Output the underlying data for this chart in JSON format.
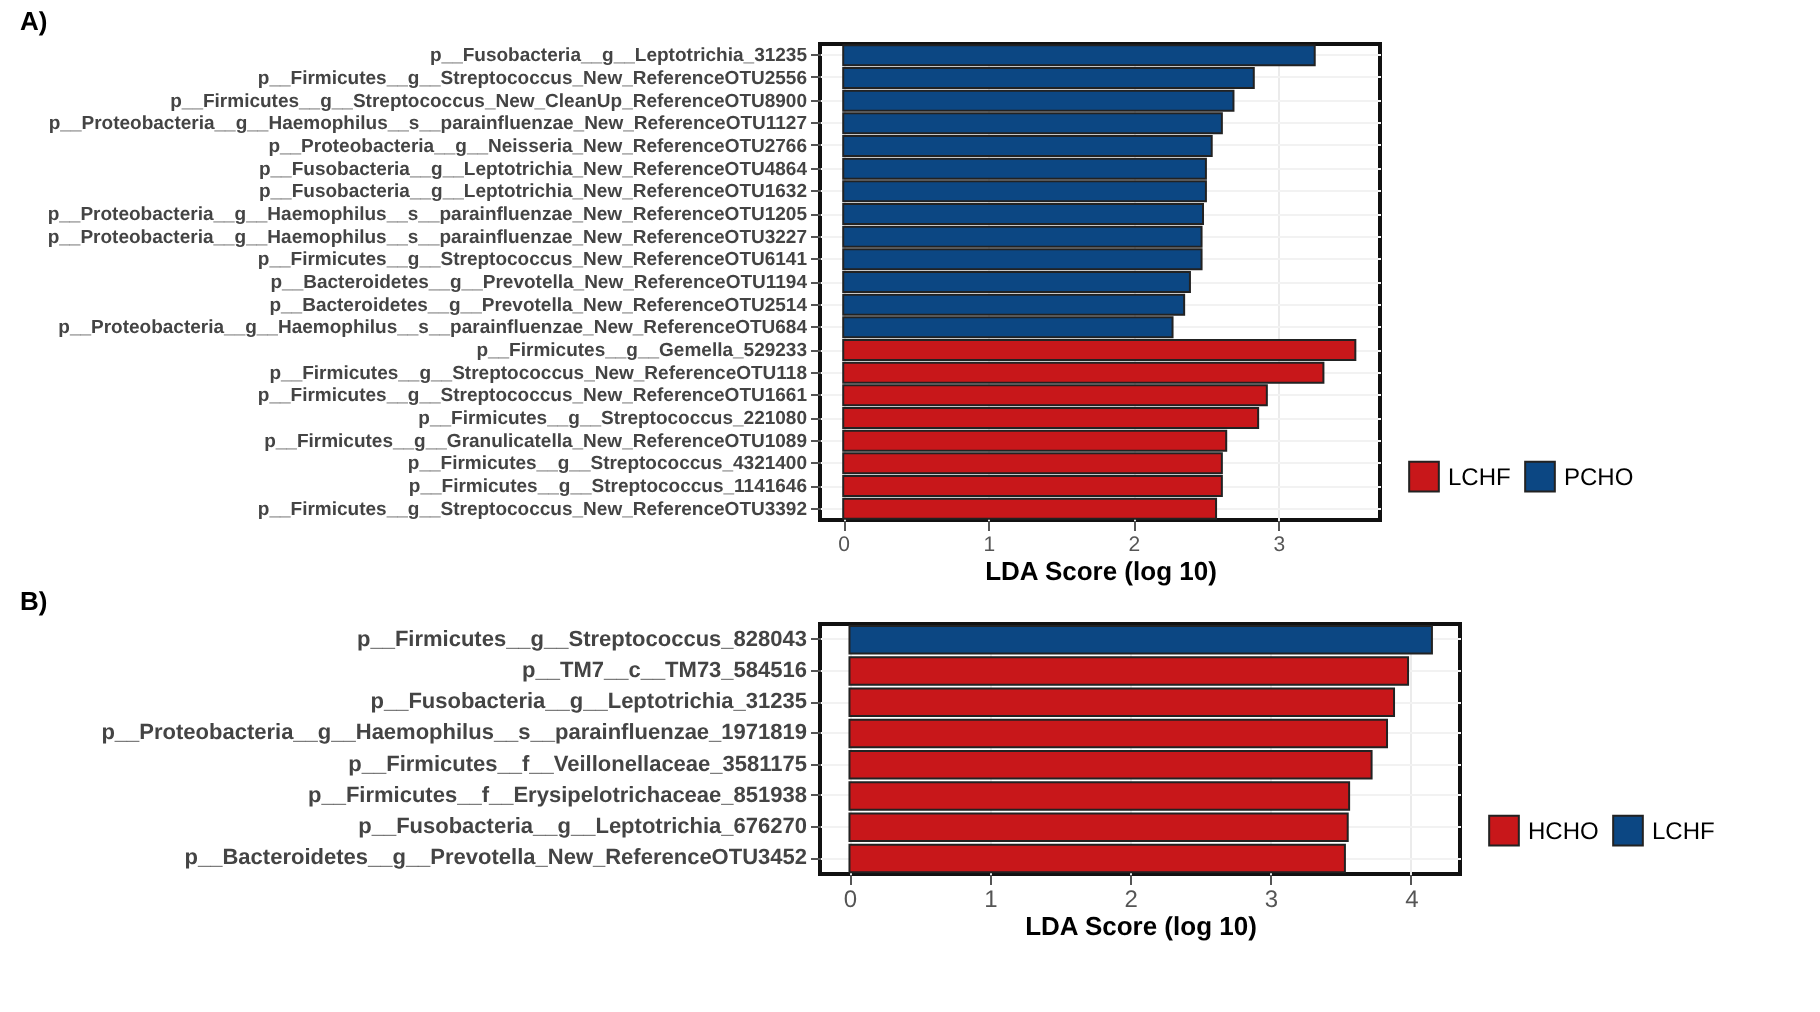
{
  "chart_data": [
    {
      "type": "bar",
      "title": "A)",
      "orientation": "horizontal",
      "xlabel": "LDA Score (log 10)",
      "categories": [
        "p__Fusobacteria__g__Leptotrichia_31235",
        "p__Firmicutes__g__Streptococcus_New_ReferenceOTU2556",
        "p__Firmicutes__g__Streptococcus_New_CleanUp_ReferenceOTU8900",
        "p__Proteobacteria__g__Haemophilus__s__parainfluenzae_New_ReferenceOTU1127",
        "p__Proteobacteria__g__Neisseria_New_ReferenceOTU2766",
        "p__Fusobacteria__g__Leptotrichia_New_ReferenceOTU4864",
        "p__Fusobacteria__g__Leptotrichia_New_ReferenceOTU1632",
        "p__Proteobacteria__g__Haemophilus__s__parainfluenzae_New_ReferenceOTU1205",
        "p__Proteobacteria__g__Haemophilus__s__parainfluenzae_New_ReferenceOTU3227",
        "p__Firmicutes__g__Streptococcus_New_ReferenceOTU6141",
        "p__Bacteroidetes__g__Prevotella_New_ReferenceOTU1194",
        "p__Bacteroidetes__g__Prevotella_New_ReferenceOTU2514",
        "p__Proteobacteria__g__Haemophilus__s__parainfluenzae_New_ReferenceOTU684",
        "p__Firmicutes__g__Gemella_529233",
        "p__Firmicutes__g__Streptococcus_New_ReferenceOTU118",
        "p__Firmicutes__g__Streptococcus_New_ReferenceOTU1661",
        "p__Firmicutes__g__Streptococcus_221080",
        "p__Firmicutes__g__Granulicatella_New_ReferenceOTU1089",
        "p__Firmicutes__g__Streptococcus_4321400",
        "p__Firmicutes__g__Streptococcus_1141646",
        "p__Firmicutes__g__Streptococcus_New_ReferenceOTU3392"
      ],
      "series": [
        {
          "name": "LCHF",
          "color": "#c8171a",
          "values": [
            null,
            null,
            null,
            null,
            null,
            null,
            null,
            null,
            null,
            null,
            null,
            null,
            null,
            3.53,
            3.31,
            2.92,
            2.86,
            2.64,
            2.61,
            2.61,
            2.57
          ]
        },
        {
          "name": "PCHO",
          "color": "#0c4783",
          "values": [
            3.25,
            2.83,
            2.69,
            2.61,
            2.54,
            2.5,
            2.5,
            2.48,
            2.47,
            2.47,
            2.39,
            2.35,
            2.27,
            null,
            null,
            null,
            null,
            null,
            null,
            null,
            null
          ]
        }
      ],
      "xlim": [
        -0.16,
        3.7
      ],
      "xticks": [
        0,
        1,
        2,
        3
      ],
      "grid": true,
      "legend": "right"
    },
    {
      "type": "bar",
      "title": "B)",
      "orientation": "horizontal",
      "xlabel": "LDA Score (log 10)",
      "categories": [
        "p__Firmicutes__g__Streptococcus_828043",
        "p__TM7__c__TM73_584516",
        "p__Fusobacteria__g__Leptotrichia_31235",
        "p__Proteobacteria__g__Haemophilus__s__parainfluenzae_1971819",
        "p__Firmicutes__f__Veillonellaceae_3581175",
        "p__Firmicutes__f__Erysipelotrichaceae_851938",
        "p__Fusobacteria__g__Leptotrichia_676270",
        "p__Bacteroidetes__g__Prevotella_New_ReferenceOTU3452"
      ],
      "series": [
        {
          "name": "HCHO",
          "color": "#c8171a",
          "values": [
            null,
            3.98,
            3.88,
            3.83,
            3.72,
            3.56,
            3.55,
            3.53
          ]
        },
        {
          "name": "LCHF",
          "color": "#0c4783",
          "values": [
            4.15,
            null,
            null,
            null,
            null,
            null,
            null,
            null
          ]
        }
      ],
      "xlim": [
        -0.21,
        4.35
      ],
      "xticks": [
        0,
        1,
        2,
        3,
        4
      ],
      "grid": true,
      "legend": "right"
    }
  ]
}
